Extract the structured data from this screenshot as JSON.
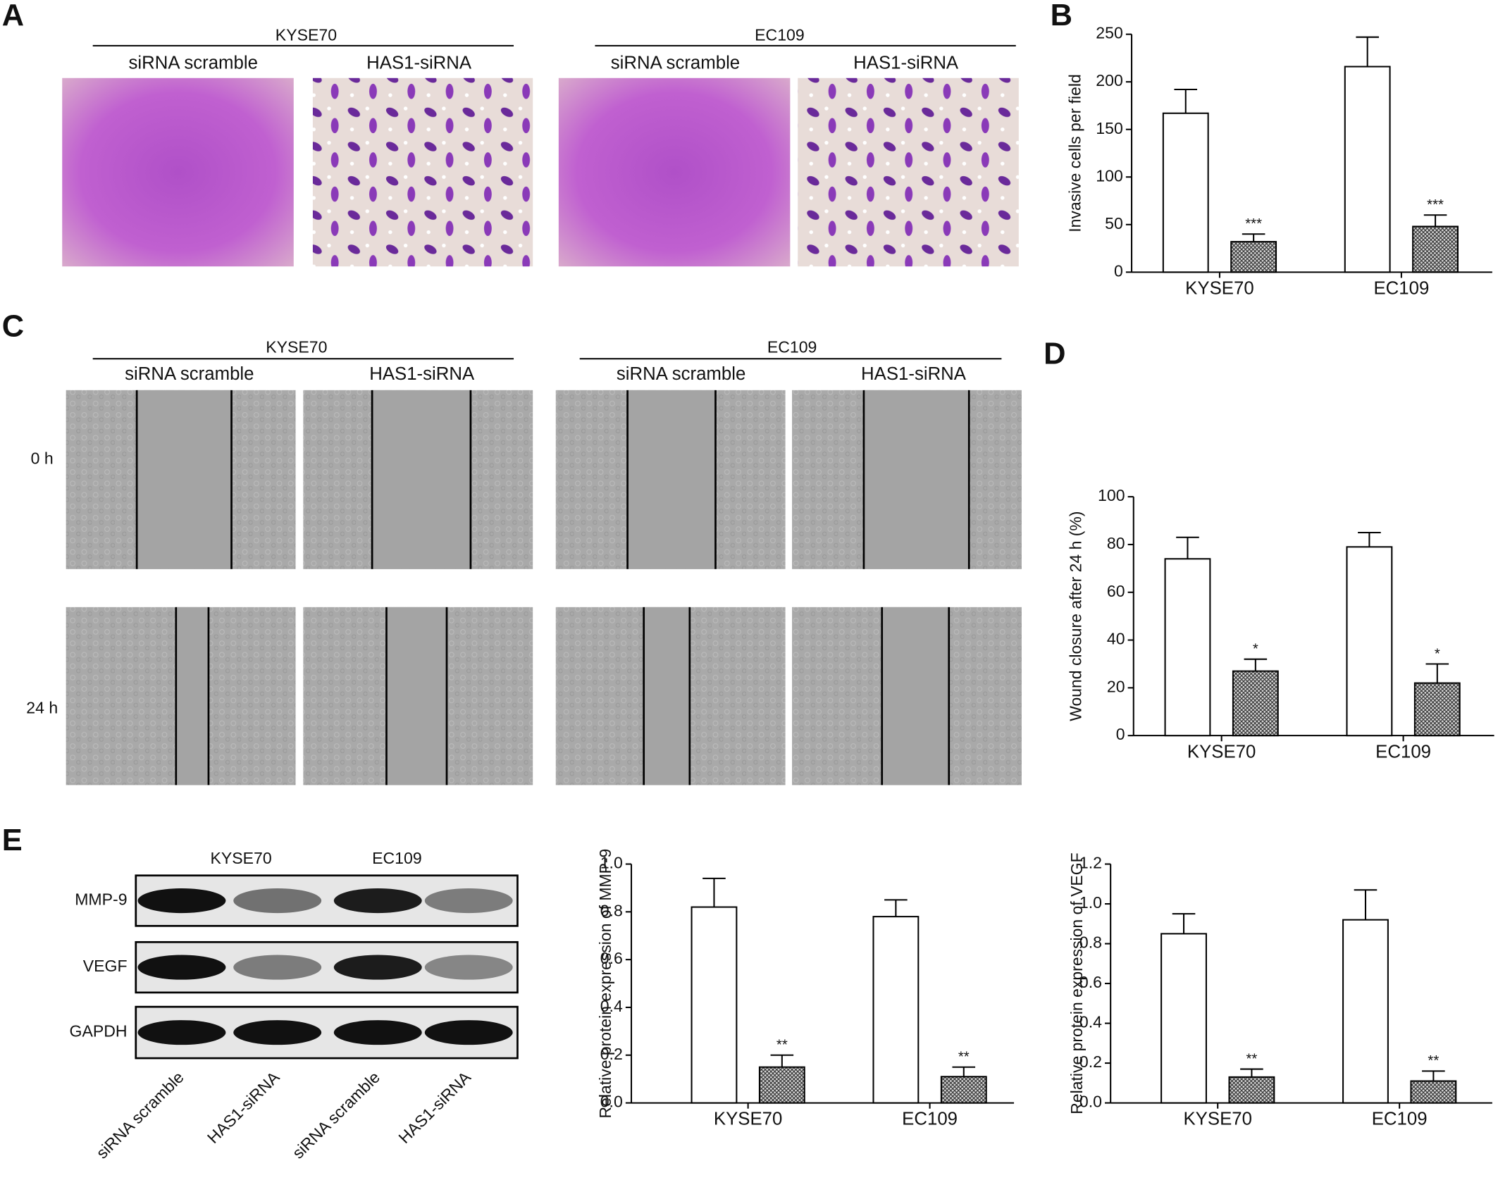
{
  "panel_labels": [
    "A",
    "B",
    "C",
    "D",
    "E"
  ],
  "panel_a": {
    "groups": [
      {
        "name": "KYSE70",
        "conditions": [
          "siRNA scramble",
          "HAS1-siRNA"
        ]
      },
      {
        "name": "EC109",
        "conditions": [
          "siRNA scramble",
          "HAS1-siRNA"
        ]
      }
    ]
  },
  "panel_c": {
    "groups": [
      {
        "name": "KYSE70",
        "conditions": [
          "siRNA scramble",
          "HAS1-siRNA"
        ]
      },
      {
        "name": "EC109",
        "conditions": [
          "siRNA scramble",
          "HAS1-siRNA"
        ]
      }
    ],
    "timepoints": [
      "0 h",
      "24 h"
    ]
  },
  "panel_e_blot": {
    "groups": [
      "KYSE70",
      "EC109"
    ],
    "proteins": [
      "MMP-9",
      "VEGF",
      "GAPDH"
    ],
    "lanes": [
      "siRNA scramble",
      "HAS1-siRNA",
      "siRNA scramble",
      "HAS1-siRNA"
    ]
  },
  "chart_data": [
    {
      "type": "bar",
      "ylabel": "Invasive cells per field",
      "categories": [
        "KYSE70",
        "EC109"
      ],
      "ylim": [
        0,
        250
      ],
      "yticks": [
        0,
        50,
        100,
        150,
        200,
        250
      ],
      "series": [
        {
          "color": "#ffffff",
          "values": [
            167,
            216
          ],
          "errors": [
            25,
            31
          ]
        },
        {
          "color": "#8c8c8c",
          "hatch": true,
          "values": [
            32,
            48
          ],
          "errors": [
            8,
            12
          ],
          "annotations": [
            "***",
            "***"
          ]
        }
      ]
    },
    {
      "type": "bar",
      "ylabel": "Wound closure after 24 h (%)",
      "categories": [
        "KYSE70",
        "EC109"
      ],
      "ylim": [
        0,
        100
      ],
      "yticks": [
        0,
        20,
        40,
        60,
        80,
        100
      ],
      "series": [
        {
          "color": "#ffffff",
          "values": [
            74,
            79
          ],
          "errors": [
            9,
            6
          ]
        },
        {
          "color": "#8c8c8c",
          "hatch": true,
          "values": [
            27,
            22
          ],
          "errors": [
            5,
            8
          ],
          "annotations": [
            "*",
            "*"
          ]
        }
      ]
    },
    {
      "type": "bar",
      "ylabel": "Relative protein expression of MMP-9",
      "categories": [
        "KYSE70",
        "EC109"
      ],
      "ylim": [
        0,
        1.0
      ],
      "yticks": [
        {
          "value": 0,
          "label": "0.0"
        },
        0.2,
        0.4,
        0.6,
        0.8,
        {
          "value": 1,
          "label": "1.0"
        }
      ],
      "series": [
        {
          "color": "#ffffff",
          "values": [
            0.82,
            0.78
          ],
          "errors": [
            0.12,
            0.07
          ]
        },
        {
          "color": "#8c8c8c",
          "hatch": true,
          "values": [
            0.15,
            0.11
          ],
          "errors": [
            0.05,
            0.04
          ],
          "annotations": [
            "**",
            "**"
          ]
        }
      ]
    },
    {
      "type": "bar",
      "ylabel": "Relative protein expression of VEGF",
      "categories": [
        "KYSE70",
        "EC109"
      ],
      "ylim": [
        0,
        1.2
      ],
      "yticks": [
        {
          "value": 0,
          "label": "0.0"
        },
        0.2,
        0.4,
        0.6,
        0.8,
        {
          "value": 1,
          "label": "1.0"
        },
        1.2
      ],
      "series": [
        {
          "color": "#ffffff",
          "values": [
            0.85,
            0.92
          ],
          "errors": [
            0.1,
            0.15
          ]
        },
        {
          "color": "#8c8c8c",
          "hatch": true,
          "values": [
            0.13,
            0.11
          ],
          "errors": [
            0.04,
            0.05
          ],
          "annotations": [
            "**",
            "**"
          ]
        }
      ]
    }
  ]
}
